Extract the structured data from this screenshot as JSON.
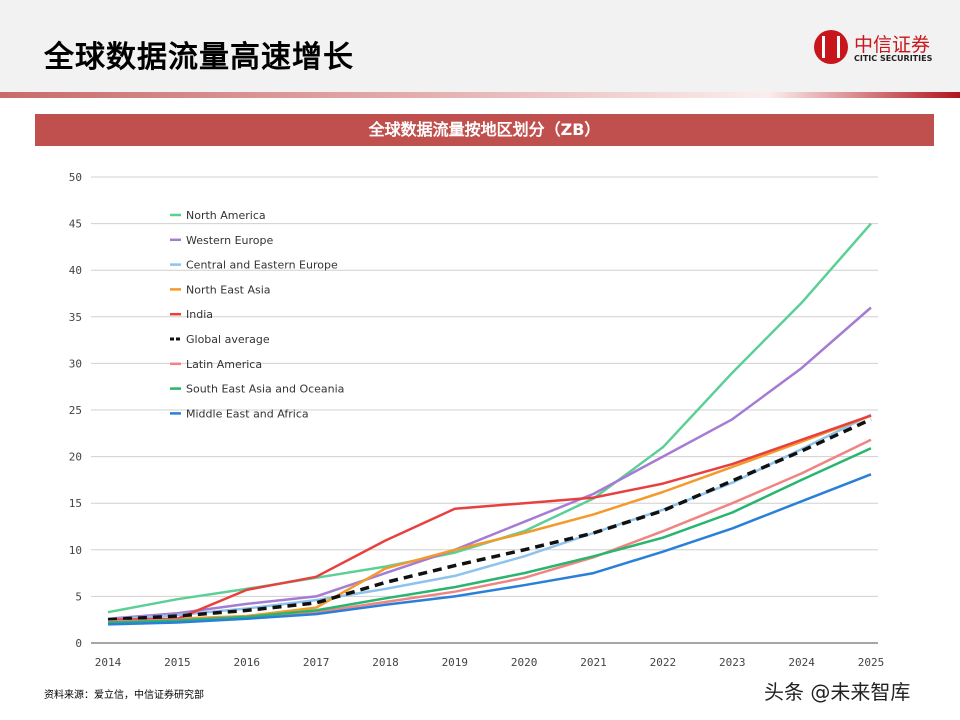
{
  "header": {
    "title": "全球数据流量高速增长",
    "logo_cn": "中信证券",
    "logo_en": "CITIC SECURITIES"
  },
  "footer": {
    "source": "资料来源：爱立信，中信证券研究部",
    "watermark": "头条 @未来智库"
  },
  "chart_data": {
    "type": "line",
    "title": "全球数据流量按地区划分（ZB）",
    "xlabel": "",
    "ylabel": "",
    "x": [
      2014,
      2015,
      2016,
      2017,
      2018,
      2019,
      2020,
      2021,
      2022,
      2023,
      2024,
      2025
    ],
    "ylim": [
      0,
      50
    ],
    "yticks": [
      0,
      5,
      10,
      15,
      20,
      25,
      30,
      35,
      40,
      45,
      50
    ],
    "grid": true,
    "legend_position": "top-left",
    "series": [
      {
        "name": "North America",
        "color": "#5ccf97",
        "dashed": false,
        "values": [
          3.3,
          4.7,
          5.8,
          7.0,
          8.2,
          9.7,
          12.0,
          15.5,
          21.0,
          29.0,
          36.5,
          45.0
        ]
      },
      {
        "name": "Western Europe",
        "color": "#a67bd4",
        "dashed": false,
        "values": [
          2.6,
          3.2,
          4.2,
          5.0,
          7.5,
          10.0,
          13.0,
          16.0,
          20.0,
          24.0,
          29.5,
          36.0
        ]
      },
      {
        "name": "Central and Eastern Europe",
        "color": "#8dc3ec",
        "dashed": false,
        "values": [
          2.5,
          3.0,
          3.7,
          4.6,
          5.8,
          7.2,
          9.3,
          11.8,
          14.3,
          17.2,
          20.8,
          24.5
        ]
      },
      {
        "name": "North East Asia",
        "color": "#f39a2b",
        "dashed": false,
        "values": [
          2.4,
          2.6,
          2.9,
          3.8,
          8.0,
          10.0,
          11.8,
          13.8,
          16.2,
          18.9,
          21.6,
          24.4
        ]
      },
      {
        "name": "India",
        "color": "#e8403f",
        "dashed": false,
        "values": [
          2.5,
          2.6,
          5.7,
          7.1,
          11.0,
          14.4,
          15.0,
          15.6,
          17.1,
          19.2,
          21.8,
          24.4
        ]
      },
      {
        "name": "Global average",
        "color": "#111111",
        "dashed": true,
        "values": [
          2.5,
          2.9,
          3.5,
          4.3,
          6.5,
          8.3,
          10.0,
          11.8,
          14.2,
          17.4,
          20.6,
          24.0
        ]
      },
      {
        "name": "Latin America",
        "color": "#f08482",
        "dashed": false,
        "values": [
          2.3,
          2.5,
          2.8,
          3.3,
          4.4,
          5.5,
          7.0,
          9.2,
          12.0,
          15.0,
          18.2,
          21.8
        ]
      },
      {
        "name": "South East Asia and Oceania",
        "color": "#27b56f",
        "dashed": false,
        "values": [
          2.2,
          2.4,
          2.8,
          3.5,
          4.8,
          6.0,
          7.5,
          9.3,
          11.3,
          14.0,
          17.5,
          20.9
        ]
      },
      {
        "name": "Middle East and Africa",
        "color": "#2a80d8",
        "dashed": false,
        "values": [
          2.0,
          2.2,
          2.6,
          3.1,
          4.1,
          5.0,
          6.2,
          7.5,
          9.8,
          12.3,
          15.2,
          18.1
        ]
      }
    ]
  }
}
